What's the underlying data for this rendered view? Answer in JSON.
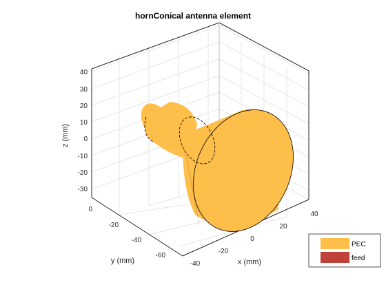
{
  "figure": {
    "title": "hornConical antenna element",
    "axes": {
      "xlabel": "x (mm)",
      "ylabel": "y (mm)",
      "zlabel": "z (mm)",
      "x_ticks": [
        "-40",
        "-20",
        "0",
        "20",
        "40"
      ],
      "y_ticks": [
        "0",
        "-20",
        "-40",
        "-60"
      ],
      "z_ticks": [
        "40",
        "30",
        "20",
        "10",
        "0",
        "-10",
        "-20",
        "-30"
      ],
      "grid": true,
      "box": true
    },
    "legend": {
      "placement": "bottom-right",
      "entries": [
        {
          "label": "PEC",
          "color": "#fdbe4a"
        },
        {
          "label": "feed",
          "color": "#c0403a"
        }
      ]
    },
    "colors": {
      "metal": "#fdbe4a",
      "feed": "#c0403a",
      "edge": "#000000",
      "grid": "#e6e6e6",
      "axis": "#262626"
    }
  }
}
